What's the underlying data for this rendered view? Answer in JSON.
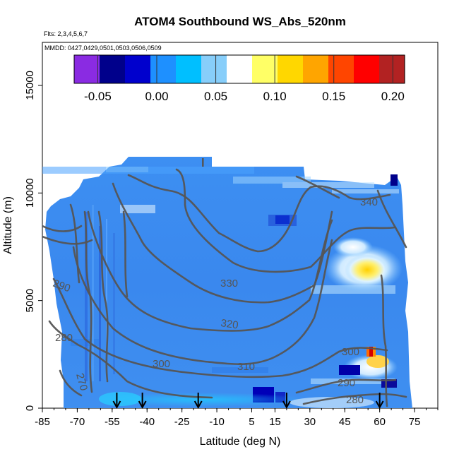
{
  "chart_data": {
    "type": "heatmap",
    "title": "ATOM4 Southbound WS_Abs_520nm",
    "subtitle_flights": "Flts: 2,3,4,5,6,7",
    "subtitle_dates": "MMDD: 0427,0429,0501,0503,0506,0509",
    "xlabel": "Latitude (deg N)",
    "ylabel": "Altitude (m)",
    "xlim": [
      -85,
      85
    ],
    "ylim": [
      0,
      17000
    ],
    "x_ticks": [
      -85,
      -70,
      -55,
      -40,
      -25,
      -10,
      5,
      15,
      30,
      45,
      60,
      75
    ],
    "y_ticks": [
      0,
      5000,
      10000,
      15000
    ],
    "colorbar": {
      "range": [
        -0.07,
        0.21
      ],
      "ticks": [
        -0.05,
        0.0,
        0.05,
        0.1,
        0.15,
        0.2
      ],
      "tick_labels": [
        "-0.05",
        "0.00",
        "0.05",
        "0.10",
        "0.15",
        "0.20"
      ],
      "colors": [
        "#8a2be2",
        "#00008b",
        "#0000cd",
        "#1e90ff",
        "#00bfff",
        "#87cefa",
        "#ffffff",
        "#ffff66",
        "#ffd700",
        "#ffa500",
        "#ff4500",
        "#ff0000",
        "#b22222"
      ]
    },
    "contour_levels": [
      270,
      280,
      290,
      300,
      310,
      320,
      330,
      340
    ],
    "profile_markers_latitude": [
      -53,
      -42,
      -18,
      20,
      60
    ],
    "grid": false,
    "legend": "none"
  }
}
